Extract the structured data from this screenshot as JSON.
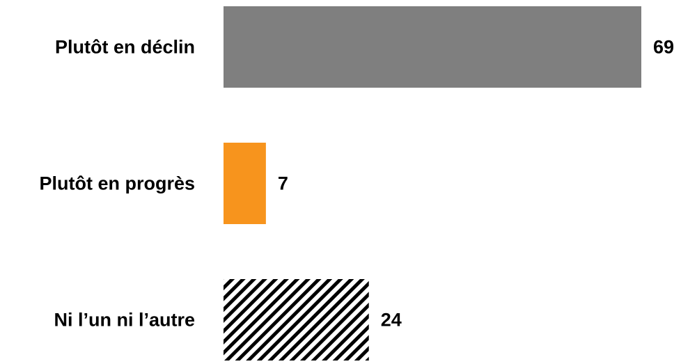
{
  "chart_data": {
    "type": "bar",
    "orientation": "horizontal",
    "categories": [
      "Plutôt en déclin",
      "Plutôt en progrès",
      "Ni l’un ni l’autre"
    ],
    "values": [
      69,
      7,
      24
    ],
    "value_labels": [
      "69",
      "7",
      "24"
    ],
    "title": "",
    "xlabel": "",
    "ylabel": "",
    "xlim": [
      0,
      69
    ],
    "grid": false,
    "legend": "none",
    "bar_fills": [
      "solid",
      "solid",
      "diagonal-hatch"
    ],
    "colors": [
      "#7f7f7f",
      "#f7941d",
      "#000000"
    ]
  }
}
